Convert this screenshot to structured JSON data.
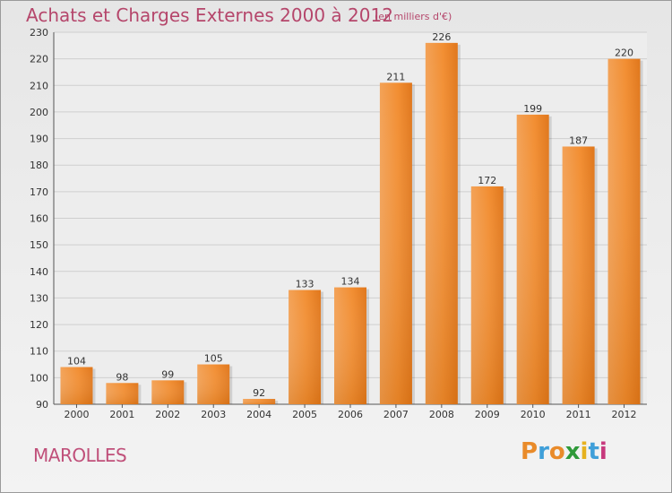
{
  "header": {
    "title": "Achats et Charges Externes 2000 à 2012",
    "subtitle": "(en milliers d'€)"
  },
  "footer": {
    "commune": "MAROLLES",
    "logo_text": "Proxiti",
    "logo_colors": [
      "#e98b2a",
      "#3f9fd9",
      "#e98b2a",
      "#2f9a3a",
      "#e6b11f",
      "#3f9fd9",
      "#c7397d"
    ]
  },
  "chart_data": {
    "type": "bar",
    "title": "Achats et Charges Externes 2000 à 2012",
    "subtitle": "(en milliers d'€)",
    "xlabel": "",
    "ylabel": "",
    "categories": [
      "2000",
      "2001",
      "2002",
      "2003",
      "2004",
      "2005",
      "2006",
      "2007",
      "2008",
      "2009",
      "2010",
      "2011",
      "2012"
    ],
    "values": [
      104,
      98,
      99,
      105,
      92,
      133,
      134,
      211,
      226,
      172,
      199,
      187,
      220
    ],
    "ylim": [
      90,
      230
    ],
    "yticks": [
      90,
      100,
      110,
      120,
      130,
      140,
      150,
      160,
      170,
      180,
      190,
      200,
      210,
      220,
      230
    ],
    "grid": true,
    "bar_color": "#f08a2c",
    "legend": "none"
  }
}
